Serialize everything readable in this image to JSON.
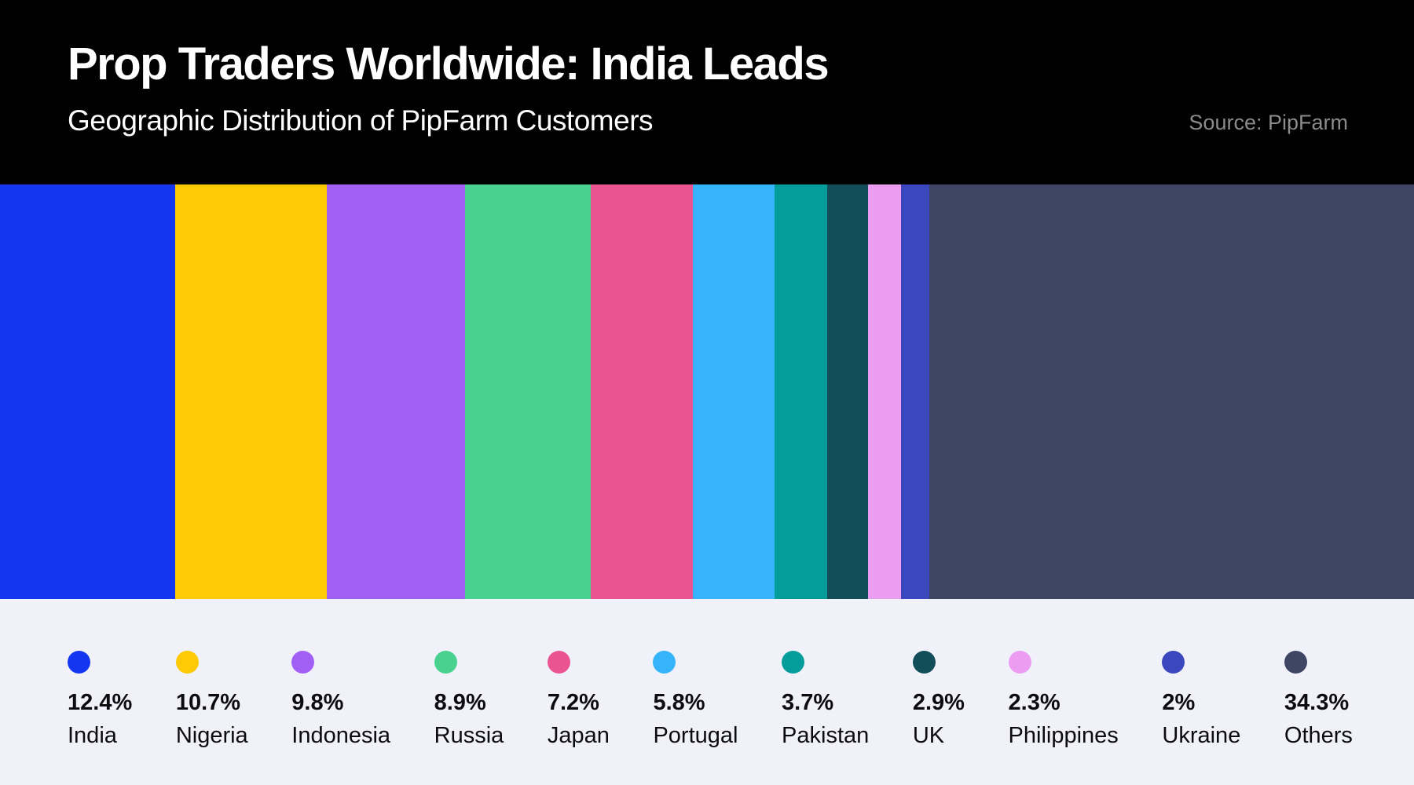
{
  "header": {
    "title": "Prop Traders Worldwide: India Leads",
    "subtitle": "Geographic Distribution of PipFarm Customers",
    "source": "Source: PipFarm"
  },
  "chart_data": {
    "type": "bar",
    "variant": "proportional-stacked-horizontal",
    "title": "Prop Traders Worldwide: India Leads",
    "subtitle": "Geographic Distribution of PipFarm Customers",
    "source": "Source: PipFarm",
    "unit": "percent",
    "total": 100,
    "legend_position": "bottom",
    "categories": [
      "India",
      "Nigeria",
      "Indonesia",
      "Russia",
      "Japan",
      "Portugal",
      "Pakistan",
      "UK",
      "Philippines",
      "Ukraine",
      "Others"
    ],
    "values": [
      12.4,
      10.7,
      9.8,
      8.9,
      7.2,
      5.8,
      3.7,
      2.9,
      2.3,
      2,
      34.3
    ],
    "segments": [
      {
        "label": "India",
        "value": 12.4,
        "display": "12.4%",
        "color": "#1536f1"
      },
      {
        "label": "Nigeria",
        "value": 10.7,
        "display": "10.7%",
        "color": "#ffc903"
      },
      {
        "label": "Indonesia",
        "value": 9.8,
        "display": "9.8%",
        "color": "#a25ff5"
      },
      {
        "label": "Russia",
        "value": 8.9,
        "display": "8.9%",
        "color": "#48d18f"
      },
      {
        "label": "Japan",
        "value": 7.2,
        "display": "7.2%",
        "color": "#ea5591"
      },
      {
        "label": "Portugal",
        "value": 5.8,
        "display": "5.8%",
        "color": "#35b3fb"
      },
      {
        "label": "Pakistan",
        "value": 3.7,
        "display": "3.7%",
        "color": "#049d9b"
      },
      {
        "label": "UK",
        "value": 2.9,
        "display": "2.9%",
        "color": "#124e59"
      },
      {
        "label": "Philippines",
        "value": 2.3,
        "display": "2.3%",
        "color": "#ec9df2"
      },
      {
        "label": "Ukraine",
        "value": 2,
        "display": "2%",
        "color": "#3b47bd"
      },
      {
        "label": "Others",
        "value": 34.3,
        "display": "34.3%",
        "color": "#3e4565"
      }
    ]
  },
  "colors": {
    "header_bg": "#000000",
    "legend_bg": "#f1f1fa",
    "title_text": "#ffffff",
    "source_text": "#8b8b8b",
    "legend_text": "#0b0b10"
  }
}
